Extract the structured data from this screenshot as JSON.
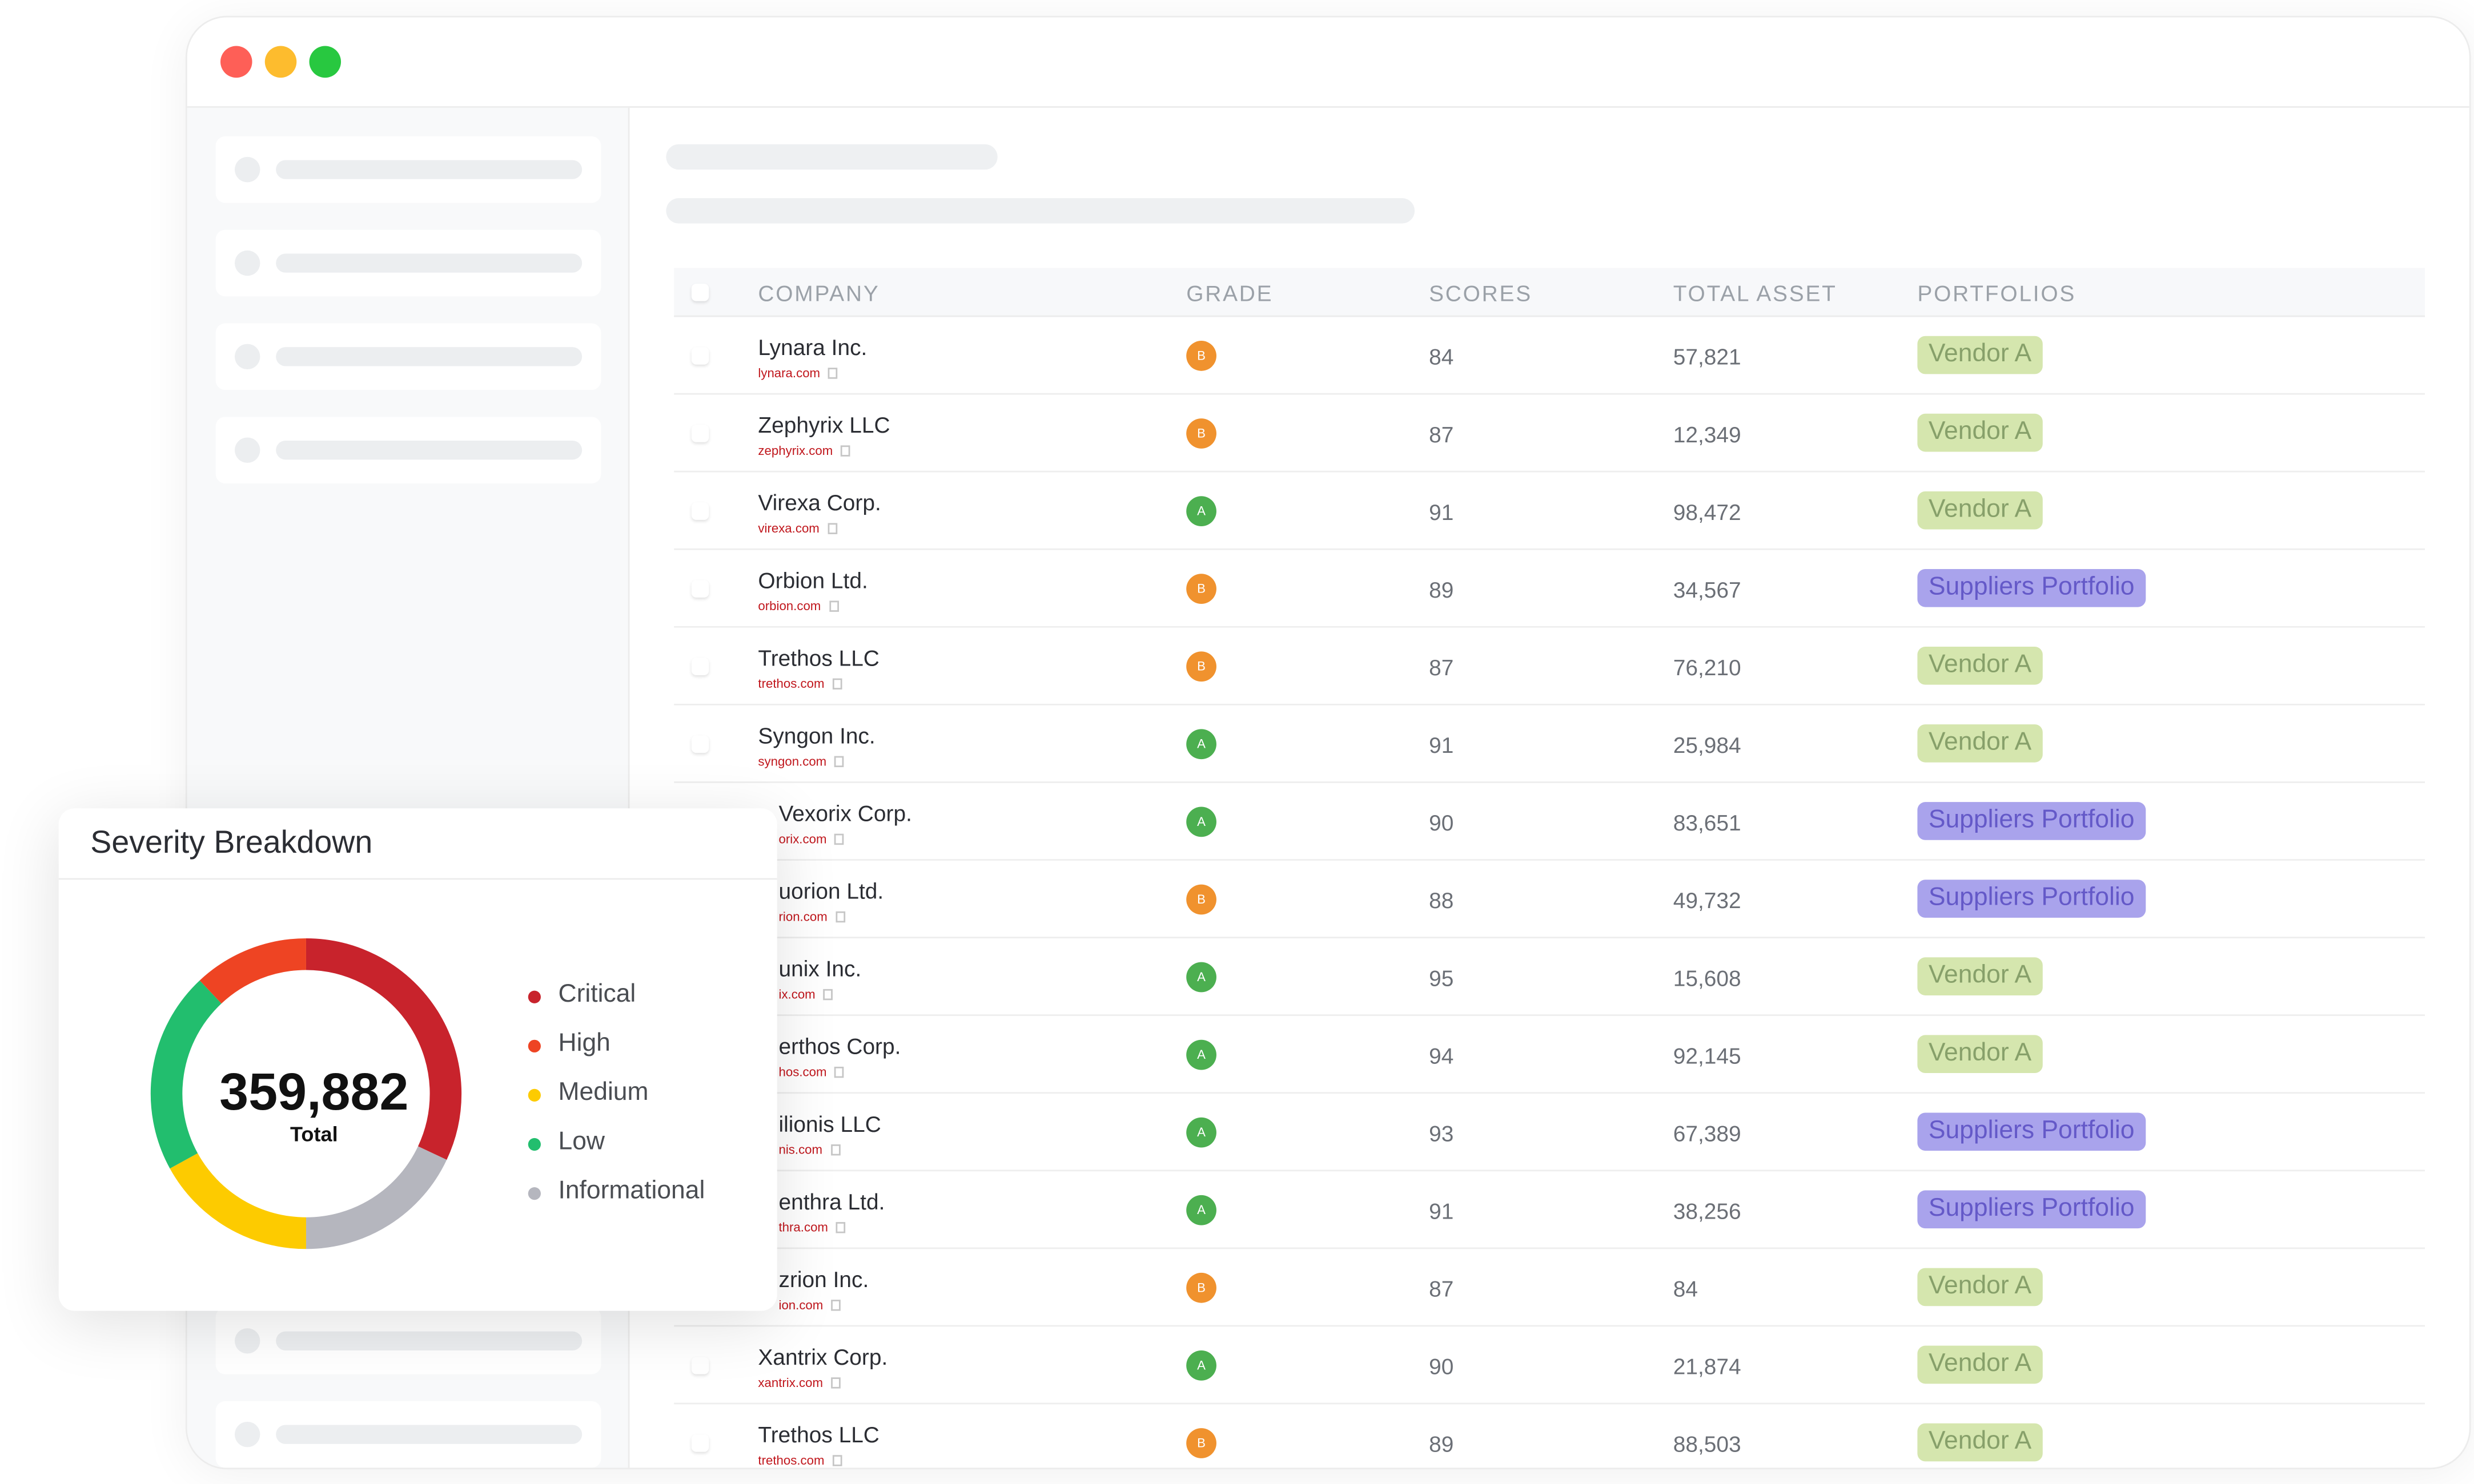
{
  "window": {
    "controls": [
      {
        "name": "close",
        "color": "#FE5F57"
      },
      {
        "name": "minimize",
        "color": "#FDBC2E"
      },
      {
        "name": "maximize",
        "color": "#28C840"
      }
    ]
  },
  "table": {
    "columns": [
      "COMPANY",
      "GRADE",
      "SCORES",
      "TOTAL ASSET",
      "PORTFOLIOS"
    ],
    "rows": [
      {
        "name": "Lynara Inc.",
        "domain": "lynara.com",
        "grade": "B",
        "score": "84",
        "asset": "57,821",
        "portfolio": "Vendor A"
      },
      {
        "name": "Zephyrix LLC",
        "domain": "zephyrix.com",
        "grade": "B",
        "score": "87",
        "asset": "12,349",
        "portfolio": "Vendor A"
      },
      {
        "name": "Virexa Corp.",
        "domain": "virexa.com",
        "grade": "A",
        "score": "91",
        "asset": "98,472",
        "portfolio": "Vendor A"
      },
      {
        "name": "Orbion Ltd.",
        "domain": "orbion.com",
        "grade": "B",
        "score": "89",
        "asset": "34,567",
        "portfolio": "Suppliers Portfolio"
      },
      {
        "name": "Trethos LLC",
        "domain": "trethos.com",
        "grade": "B",
        "score": "87",
        "asset": "76,210",
        "portfolio": "Vendor A"
      },
      {
        "name": "Syngon Inc.",
        "domain": "syngon.com",
        "grade": "A",
        "score": "91",
        "asset": "25,984",
        "portfolio": "Vendor A"
      },
      {
        "name": "Vexorix Corp.",
        "domain": "orix.com",
        "grade": "A",
        "score": "90",
        "asset": "83,651",
        "portfolio": "Suppliers Portfolio",
        "clipped": true
      },
      {
        "name": "uorion Ltd.",
        "domain": "rion.com",
        "grade": "B",
        "score": "88",
        "asset": "49,732",
        "portfolio": "Suppliers Portfolio",
        "clipped": true
      },
      {
        "name": "unix Inc.",
        "domain": "ix.com",
        "grade": "A",
        "score": "95",
        "asset": "15,608",
        "portfolio": "Vendor A",
        "clipped": true
      },
      {
        "name": "erthos Corp.",
        "domain": "hos.com",
        "grade": "A",
        "score": "94",
        "asset": "92,145",
        "portfolio": "Vendor A",
        "clipped": true
      },
      {
        "name": "ilionis LLC",
        "domain": "nis.com",
        "grade": "A",
        "score": "93",
        "asset": "67,389",
        "portfolio": "Suppliers Portfolio",
        "clipped": true
      },
      {
        "name": "enthra Ltd.",
        "domain": "thra.com",
        "grade": "A",
        "score": "91",
        "asset": "38,256",
        "portfolio": "Suppliers Portfolio",
        "clipped": true
      },
      {
        "name": "zrion Inc.",
        "domain": "ion.com",
        "grade": "B",
        "score": "87",
        "asset": "84",
        "portfolio": "Vendor A",
        "clipped": true
      },
      {
        "name": "Xantrix Corp.",
        "domain": "xantrix.com",
        "grade": "A",
        "score": "90",
        "asset": "21,874",
        "portfolio": "Vendor A"
      },
      {
        "name": "Trethos LLC",
        "domain": "trethos.com",
        "grade": "B",
        "score": "89",
        "asset": "88,503",
        "portfolio": "Vendor A"
      }
    ]
  },
  "colors": {
    "grade_A": "#4CAF50",
    "grade_B": "#F0922E",
    "vendor_bg": "#D5E6AE",
    "vendor_fg": "#87A06A",
    "suppliers_bg": "#A9A3EC",
    "suppliers_fg": "#6459C8"
  },
  "severity": {
    "title": "Severity Breakdown",
    "total": "359,882",
    "total_label": "Total"
  },
  "chart_data": {
    "type": "pie",
    "donut": true,
    "legend": "right",
    "legend_entries": [
      "Critical",
      "High",
      "Medium",
      "Low",
      "Informational"
    ],
    "series": [
      {
        "name": "Critical",
        "share_pct": 32,
        "color": "#C8232C"
      },
      {
        "name": "Informational",
        "share_pct": 18,
        "color": "#B5B6BE"
      },
      {
        "name": "Medium",
        "share_pct": 17,
        "color": "#FDCB00"
      },
      {
        "name": "Low",
        "share_pct": 21,
        "color": "#22BE6E"
      },
      {
        "name": "High",
        "share_pct": 12,
        "color": "#EE4423"
      }
    ]
  }
}
